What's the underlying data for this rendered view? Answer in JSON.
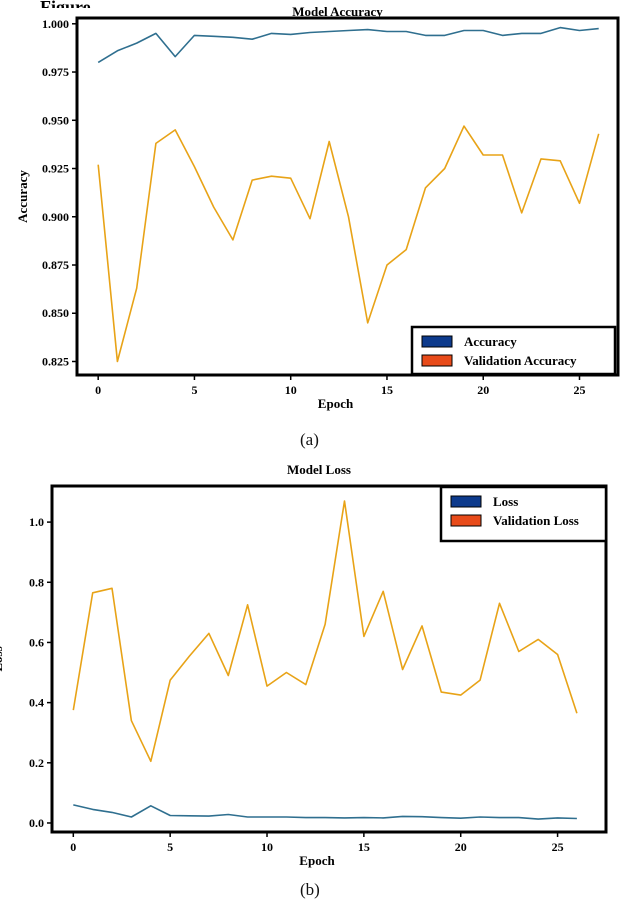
{
  "figure": {
    "top_fragment": "Figure",
    "caption_a": "(a)",
    "caption_b": "(b)"
  },
  "colors": {
    "accuracy": "#2f6f8f",
    "validation": "#e8a317",
    "legend_blue": "#0d3a8c",
    "legend_orange": "#e84b1a"
  },
  "chart_data": [
    {
      "type": "line",
      "title": "Model Accuracy",
      "xlabel": "Epoch",
      "ylabel": "Accuracy",
      "xlim": [
        -1.1,
        27
      ],
      "ylim": [
        0.818,
        1.003
      ],
      "xticks": [
        0,
        5,
        10,
        15,
        20,
        25
      ],
      "yticks": [
        0.825,
        0.85,
        0.875,
        0.9,
        0.925,
        0.95,
        0.975,
        1.0
      ],
      "ytick_labels": [
        "0.825",
        "0.850",
        "0.875",
        "0.900",
        "0.925",
        "0.950",
        "0.975",
        "1.000"
      ],
      "grid": false,
      "legend_position": "bottom-right",
      "x": [
        0,
        1,
        2,
        3,
        4,
        5,
        6,
        7,
        8,
        9,
        10,
        11,
        12,
        13,
        14,
        15,
        16,
        17,
        18,
        19,
        20,
        21,
        22,
        23,
        24,
        25,
        26
      ],
      "series": [
        {
          "name": "Accuracy",
          "legend_color": "#0d3a8c",
          "line_color": "#2f6f8f",
          "values": [
            0.98,
            0.986,
            0.99,
            0.995,
            0.983,
            0.994,
            0.9935,
            0.993,
            0.992,
            0.995,
            0.9945,
            0.9955,
            0.996,
            0.9965,
            0.997,
            0.996,
            0.996,
            0.994,
            0.994,
            0.9965,
            0.9965,
            0.994,
            0.995,
            0.995,
            0.998,
            0.9965,
            0.9975
          ]
        },
        {
          "name": "Validation Accuracy",
          "legend_color": "#e84b1a",
          "line_color": "#e8a317",
          "values": [
            0.927,
            0.825,
            0.863,
            0.938,
            0.945,
            0.926,
            0.905,
            0.888,
            0.919,
            0.921,
            0.92,
            0.899,
            0.939,
            0.9,
            0.845,
            0.875,
            0.883,
            0.915,
            0.925,
            0.947,
            0.932,
            0.932,
            0.902,
            0.93,
            0.929,
            0.907,
            0.943
          ]
        }
      ]
    },
    {
      "type": "line",
      "title": "Model Loss",
      "xlabel": "Epoch",
      "ylabel": "Loss",
      "xlim": [
        -1.1,
        27.5
      ],
      "ylim": [
        -0.03,
        1.12
      ],
      "xticks": [
        0,
        5,
        10,
        15,
        20,
        25
      ],
      "yticks": [
        0.0,
        0.2,
        0.4,
        0.6,
        0.8,
        1.0
      ],
      "ytick_labels": [
        "0.0",
        "0.2",
        "0.4",
        "0.6",
        "0.8",
        "1.0"
      ],
      "grid": false,
      "legend_position": "top-right",
      "x": [
        0,
        1,
        2,
        3,
        4,
        5,
        6,
        7,
        8,
        9,
        10,
        11,
        12,
        13,
        14,
        15,
        16,
        17,
        18,
        19,
        20,
        21,
        22,
        23,
        24,
        25,
        26
      ],
      "series": [
        {
          "name": "Loss",
          "legend_color": "#0d3a8c",
          "line_color": "#2f6f8f",
          "values": [
            0.06,
            0.045,
            0.035,
            0.02,
            0.057,
            0.025,
            0.024,
            0.023,
            0.028,
            0.02,
            0.02,
            0.02,
            0.018,
            0.018,
            0.017,
            0.018,
            0.017,
            0.022,
            0.021,
            0.018,
            0.016,
            0.02,
            0.018,
            0.018,
            0.013,
            0.017,
            0.015
          ]
        },
        {
          "name": "Validation Loss",
          "legend_color": "#e84b1a",
          "line_color": "#e8a317",
          "values": [
            0.375,
            0.765,
            0.78,
            0.34,
            0.205,
            0.475,
            0.555,
            0.63,
            0.49,
            0.725,
            0.455,
            0.5,
            0.46,
            0.66,
            1.07,
            0.62,
            0.77,
            0.51,
            0.655,
            0.435,
            0.425,
            0.475,
            0.73,
            0.57,
            0.61,
            0.56,
            0.365
          ]
        }
      ]
    }
  ]
}
